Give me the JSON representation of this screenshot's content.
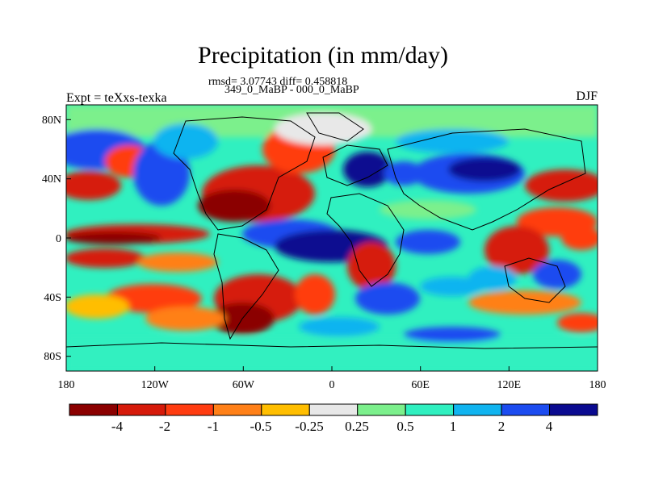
{
  "map": {
    "title": "Precipitation (in mm/day)",
    "stats_line": "rmsd= 3.07743 diff= 0.458818",
    "experiment_line": "349_0_MaBP - 000_0_MaBP",
    "left_label": "Expt = teXxs-texka",
    "right_label": "DJF",
    "lon_ticks": [
      "180",
      "120W",
      "60W",
      "0",
      "60E",
      "120E",
      "180"
    ],
    "lat_ticks": [
      "80N",
      "40N",
      "0",
      "40S",
      "80S"
    ],
    "colorbar_labels": [
      "-4",
      "-2",
      "-1",
      "-0.5",
      "-0.25",
      "0.25",
      "0.5",
      "1",
      "2",
      "4"
    ],
    "colorbar_colors": [
      "#8b0000",
      "#d61a0a",
      "#ff3c10",
      "#ff8018",
      "#ffbe00",
      "#e8e8e8",
      "#7cf08c",
      "#30f0c0",
      "#10b4f0",
      "#1c4cf0",
      "#0a0a90"
    ]
  }
}
